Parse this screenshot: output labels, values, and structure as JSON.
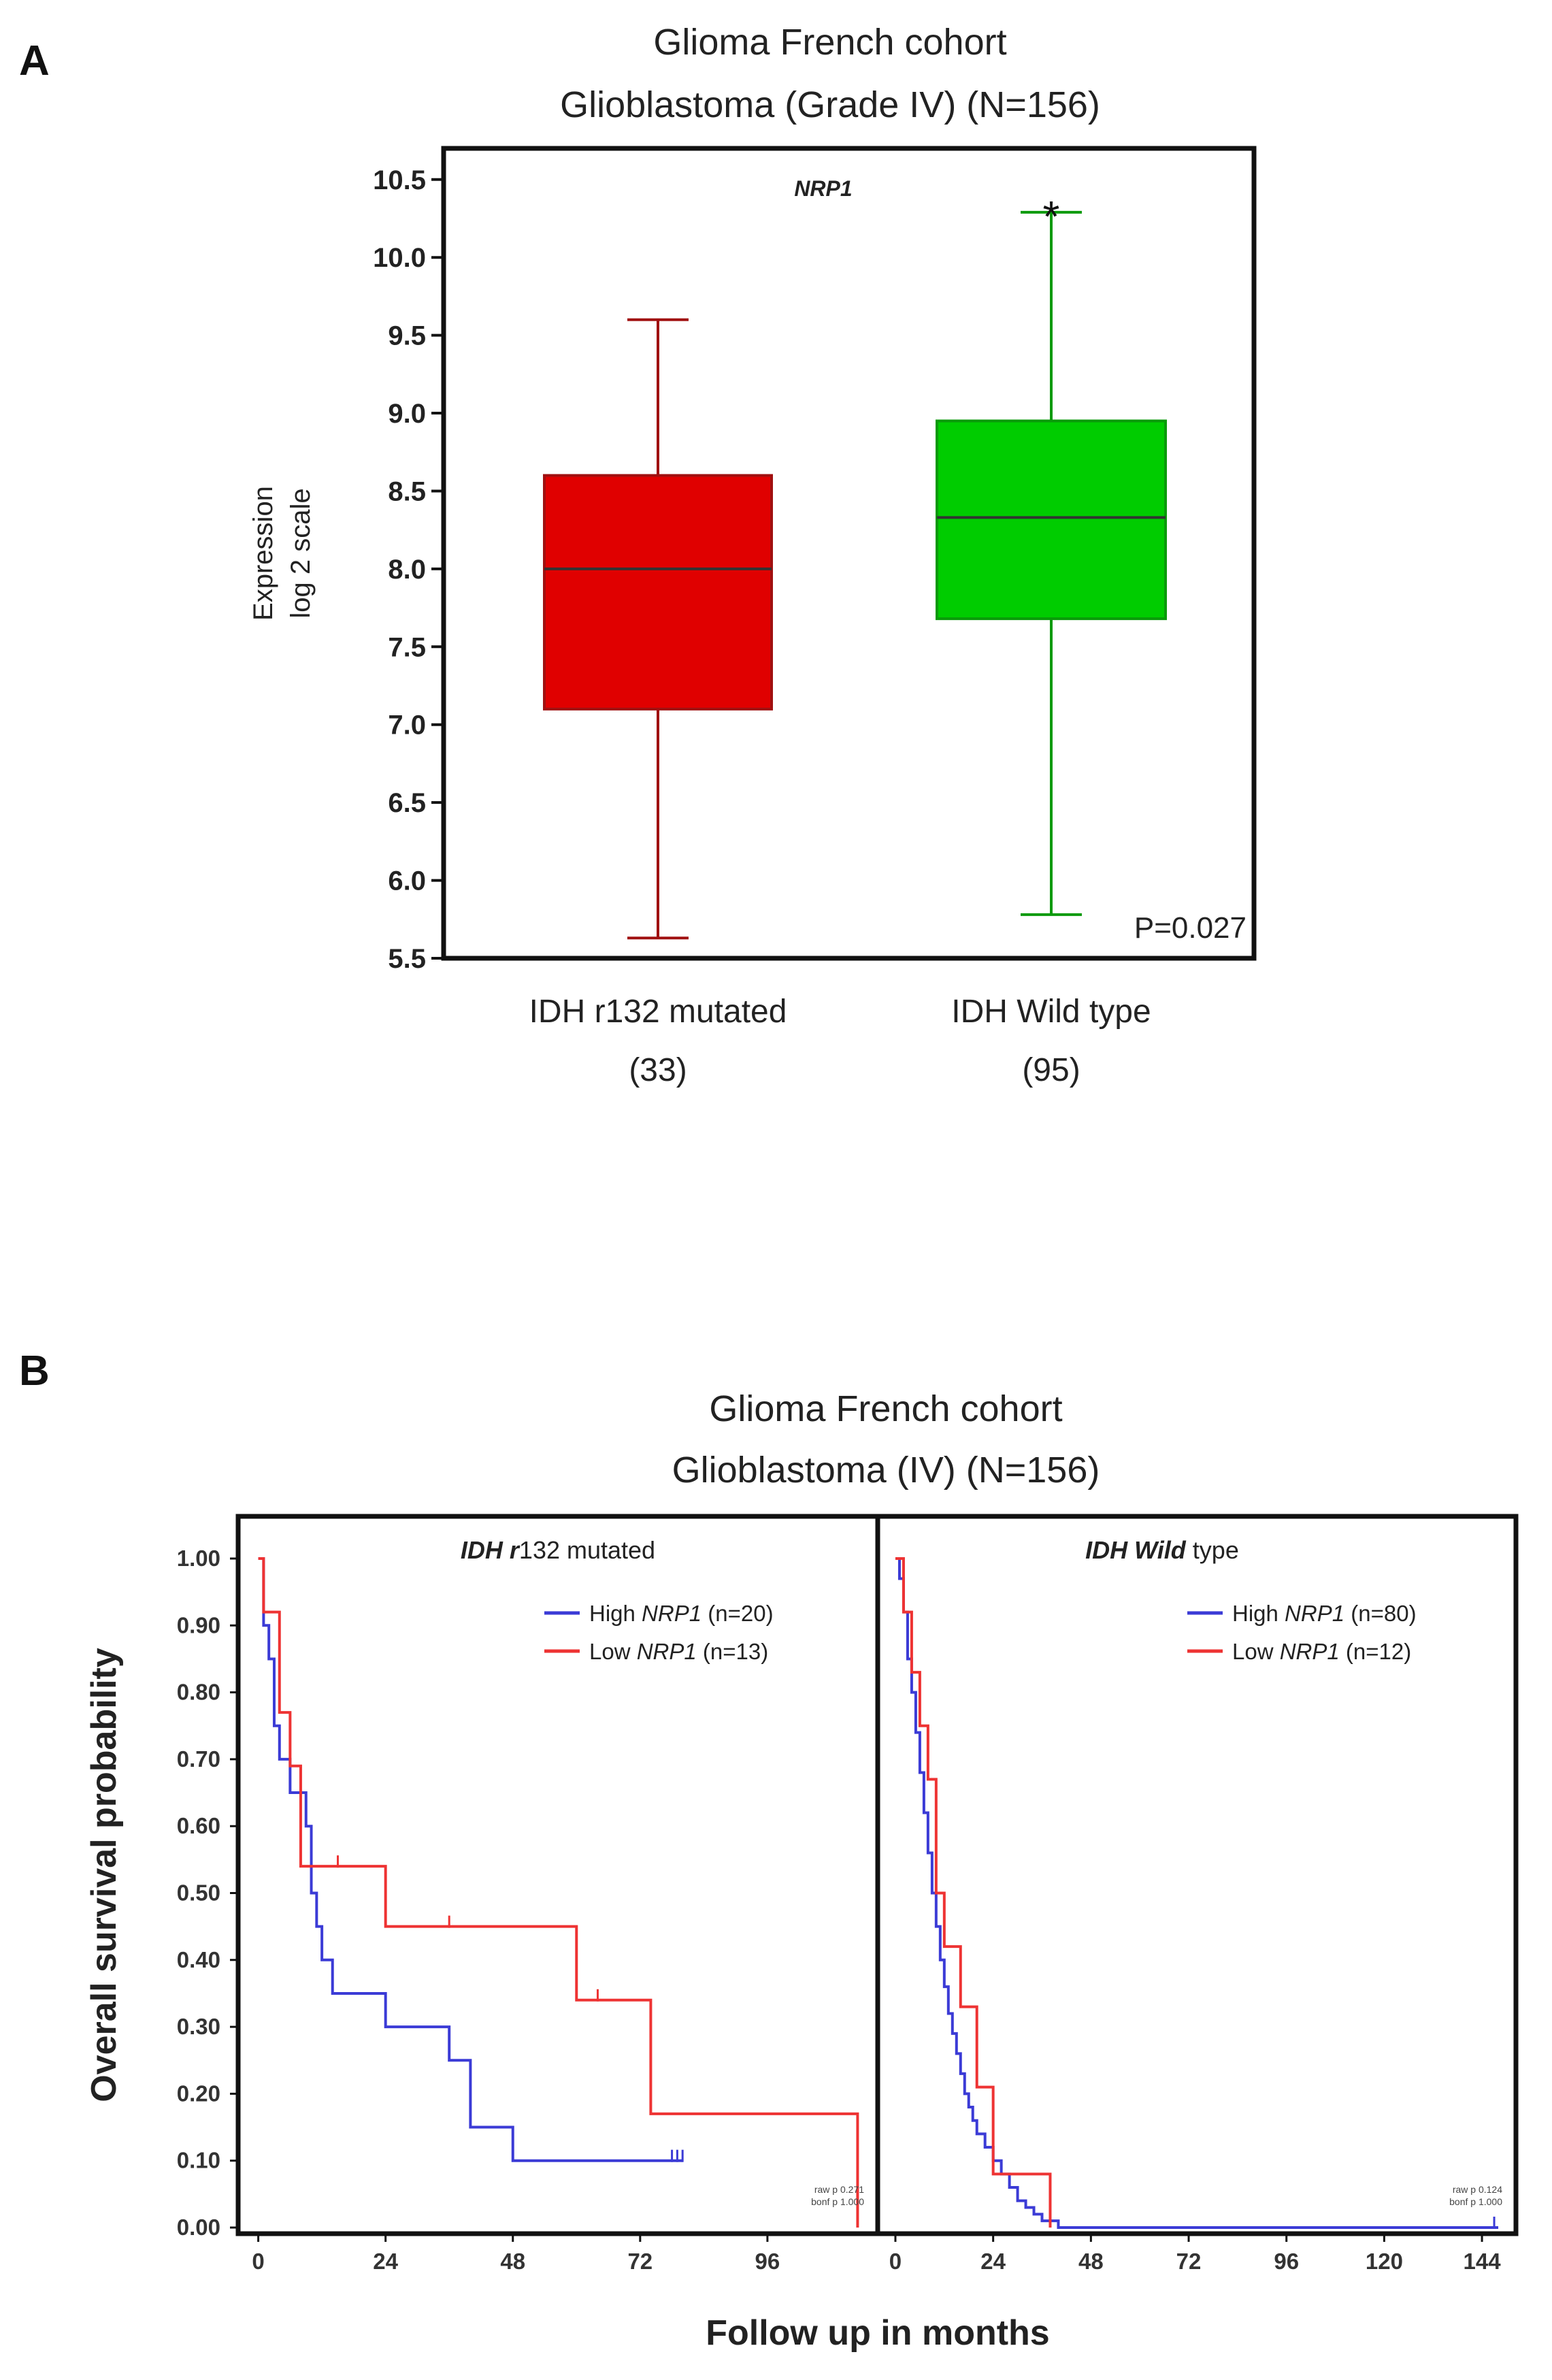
{
  "panels": {
    "a": {
      "label": "A",
      "title_line1": "Glioma French cohort",
      "title_line2": "Glioblastoma  (Grade IV) (N=156)"
    },
    "b": {
      "label": "B",
      "title_line1": "Glioma French cohort",
      "title_line2": "Glioblastoma  (IV) (N=156)"
    }
  },
  "chart_data": [
    {
      "type": "box",
      "gene": "NRP1",
      "ylabel_line1": "Expression",
      "ylabel_line2": "log 2 scale",
      "ylim": [
        5.5,
        10.7
      ],
      "yticks": [
        5.5,
        6.0,
        6.5,
        7.0,
        7.5,
        8.0,
        8.5,
        9.0,
        9.5,
        10.0,
        10.5
      ],
      "ytick_labels": [
        "5.5",
        "6.0",
        "6.5",
        "7.0",
        "7.5",
        "8.0",
        "8.5",
        "9.0",
        "9.5",
        "10.0",
        "10.5"
      ],
      "pvalue": "P=0.027",
      "significance": "*",
      "groups": [
        {
          "name": "IDH r132 mutated",
          "n_label": "(33)",
          "min": 5.63,
          "q1": 7.1,
          "median": 8.0,
          "q3": 8.6,
          "max": 9.6,
          "fill": "#e00000",
          "stroke": "#a01010"
        },
        {
          "name": "IDH Wild type",
          "n_label": "(95)",
          "min": 5.78,
          "q1": 7.68,
          "median": 8.33,
          "q3": 8.95,
          "max": 10.29,
          "fill": "#00cc00",
          "stroke": "#0a9a0a"
        }
      ]
    },
    {
      "type": "line",
      "subtype": "kaplan-meier",
      "xlabel": "Follow up in months",
      "ylabel": "Overall survival probability",
      "ylim": [
        0,
        1
      ],
      "yticks": [
        0,
        0.1,
        0.2,
        0.3,
        0.4,
        0.5,
        0.6,
        0.7,
        0.8,
        0.9,
        1.0
      ],
      "ytick_labels": [
        "0.00",
        "0.10",
        "0.20",
        "0.30",
        "0.40",
        "0.50",
        "0.60",
        "0.70",
        "0.80",
        "0.90",
        "1.00"
      ],
      "subplots": [
        {
          "title_italic": "IDH r",
          "title_rest": "132 mutated",
          "xlim": [
            -2,
            115
          ],
          "xticks": [
            0,
            24,
            48,
            72,
            96
          ],
          "annotation": [
            "raw p 0.271",
            "bonf p 1.000"
          ],
          "series": [
            {
              "legend_prefix": "High ",
              "legend_gene": "NRP1",
              "legend_suffix": " (n=20)",
              "color": "#3b3bd6",
              "x": [
                0,
                1,
                2,
                3,
                4,
                6,
                9,
                10,
                11,
                12,
                14,
                24,
                36,
                40,
                48,
                80
              ],
              "y": [
                1.0,
                0.9,
                0.85,
                0.75,
                0.7,
                0.65,
                0.6,
                0.5,
                0.45,
                0.4,
                0.35,
                0.3,
                0.25,
                0.15,
                0.1,
                0.1
              ],
              "censor_x": [
                78,
                79,
                80
              ]
            },
            {
              "legend_prefix": "Low ",
              "legend_gene": "NRP1",
              "legend_suffix": " (n=13)",
              "color": "#ee3333",
              "x": [
                0,
                1,
                4,
                6,
                8,
                24,
                60,
                74,
                113
              ],
              "y": [
                1.0,
                0.92,
                0.77,
                0.69,
                0.54,
                0.45,
                0.34,
                0.17,
                0.0
              ],
              "censor_x": [
                15,
                36,
                64
              ]
            }
          ]
        },
        {
          "title_italic": "IDH Wild",
          "title_rest": "  type",
          "xlim": [
            -2,
            150
          ],
          "xticks": [
            0,
            24,
            48,
            72,
            96,
            120,
            144
          ],
          "annotation": [
            "raw p 0.124",
            "bonf p 1.000"
          ],
          "series": [
            {
              "legend_prefix": "High ",
              "legend_gene": "NRP1",
              "legend_suffix": " (n=80)",
              "color": "#3b3bd6",
              "x": [
                0,
                1,
                2,
                3,
                4,
                5,
                6,
                7,
                8,
                9,
                10,
                11,
                12,
                13,
                14,
                15,
                16,
                17,
                18,
                19,
                20,
                22,
                24,
                26,
                28,
                30,
                32,
                34,
                36,
                40,
                148
              ],
              "y": [
                1.0,
                0.97,
                0.92,
                0.85,
                0.8,
                0.74,
                0.68,
                0.62,
                0.56,
                0.5,
                0.45,
                0.4,
                0.36,
                0.32,
                0.29,
                0.26,
                0.23,
                0.2,
                0.18,
                0.16,
                0.14,
                0.12,
                0.1,
                0.08,
                0.06,
                0.04,
                0.03,
                0.02,
                0.01,
                0.0,
                0.0
              ],
              "censor_x": [
                147
              ]
            },
            {
              "legend_prefix": "Low ",
              "legend_gene": "NRP1",
              "legend_suffix": " (n=12)",
              "color": "#ee3333",
              "x": [
                0,
                2,
                4,
                6,
                8,
                10,
                12,
                16,
                20,
                24,
                38
              ],
              "y": [
                1.0,
                0.92,
                0.83,
                0.75,
                0.67,
                0.5,
                0.42,
                0.33,
                0.21,
                0.08,
                0.0
              ],
              "censor_x": []
            }
          ]
        }
      ]
    }
  ]
}
